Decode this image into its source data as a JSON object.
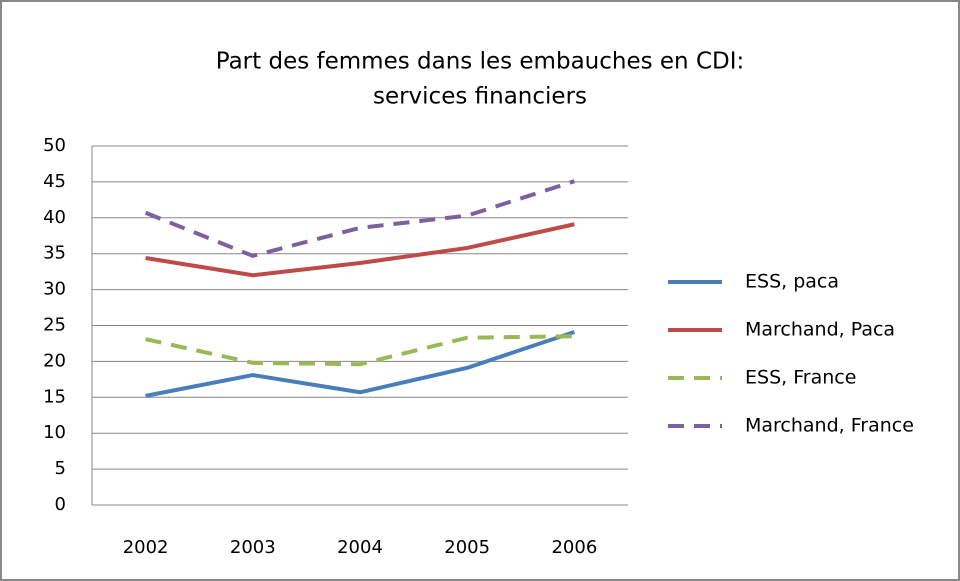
{
  "chart_data": {
    "type": "line",
    "title": [
      "Part des femmes  dans les embauches en CDI:",
      "services financiers"
    ],
    "categories": [
      "2002",
      "2003",
      "2004",
      "2005",
      "2006"
    ],
    "series": [
      {
        "name": "ESS, paca",
        "color": "#4a7ebb",
        "dashed": false,
        "values": [
          15.2,
          18.1,
          15.7,
          19.1,
          24.1
        ]
      },
      {
        "name": "Marchand, Paca",
        "color": "#be4b48",
        "dashed": false,
        "values": [
          34.4,
          32,
          33.7,
          35.8,
          39.1
        ]
      },
      {
        "name": "ESS, France",
        "color": "#98b954",
        "dashed": true,
        "values": [
          23.1,
          19.8,
          19.6,
          23.3,
          23.5
        ]
      },
      {
        "name": "Marchand, France",
        "color": "#7d60a0",
        "dashed": true,
        "values": [
          40.7,
          34.7,
          38.6,
          40.3,
          45.1
        ]
      }
    ],
    "ylim": [
      0,
      50
    ],
    "yticks": [
      0,
      5,
      10,
      15,
      20,
      25,
      30,
      35,
      40,
      45,
      50
    ],
    "grid": true,
    "legend": "right"
  }
}
